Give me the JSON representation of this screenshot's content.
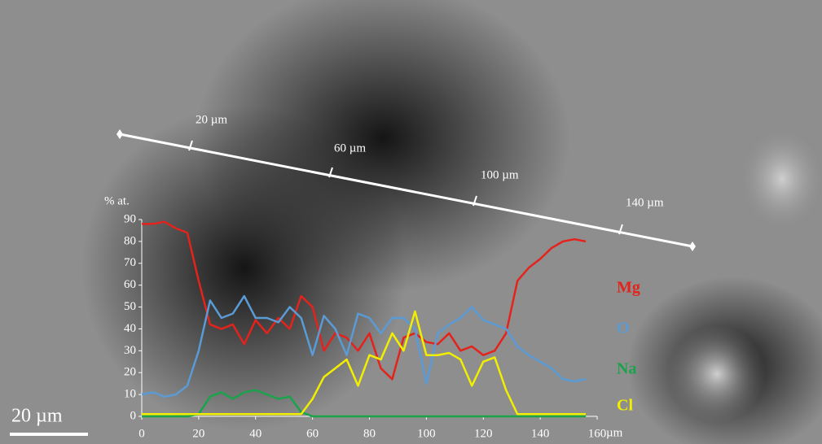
{
  "chart_data": {
    "type": "line",
    "ylabel": "% at.",
    "xlabel": "µm",
    "x": [
      0,
      4,
      8,
      12,
      16,
      20,
      24,
      28,
      32,
      36,
      40,
      44,
      48,
      52,
      56,
      60,
      64,
      68,
      72,
      76,
      80,
      84,
      88,
      92,
      96,
      100,
      104,
      108,
      112,
      116,
      120,
      124,
      128,
      132,
      136,
      140,
      144,
      148,
      152,
      156
    ],
    "series": [
      {
        "name": "Mg",
        "color": "#e3231c",
        "values": [
          88,
          88,
          89,
          86,
          84,
          62,
          42,
          40,
          42,
          33,
          44,
          38,
          45,
          40,
          55,
          50,
          30,
          38,
          36,
          30,
          38,
          22,
          17,
          36,
          38,
          34,
          33,
          38,
          30,
          32,
          28,
          30,
          38,
          62,
          68,
          72,
          77,
          80,
          81,
          80
        ]
      },
      {
        "name": "O",
        "color": "#5b9bd5",
        "values": [
          10,
          11,
          9,
          10,
          14,
          30,
          53,
          45,
          47,
          55,
          45,
          45,
          43,
          50,
          45,
          28,
          46,
          40,
          28,
          47,
          45,
          38,
          45,
          45,
          40,
          15,
          38,
          42,
          45,
          50,
          44,
          42,
          40,
          32,
          28,
          25,
          22,
          17,
          16,
          17
        ]
      },
      {
        "name": "Na",
        "color": "#1aa34a",
        "values": [
          0,
          0,
          0,
          0,
          0,
          1,
          9,
          11,
          8,
          11,
          12,
          10,
          8,
          9,
          2,
          0,
          0,
          0,
          0,
          0,
          0,
          0,
          0,
          0,
          0,
          0,
          0,
          0,
          0,
          0,
          0,
          0,
          0,
          0,
          0,
          0,
          0,
          0,
          0,
          0
        ]
      },
      {
        "name": "Cl",
        "color": "#f2ee00",
        "values": [
          1,
          1,
          1,
          1,
          1,
          1,
          1,
          1,
          1,
          1,
          1,
          1,
          1,
          1,
          1,
          8,
          18,
          22,
          26,
          14,
          28,
          26,
          38,
          30,
          48,
          28,
          28,
          29,
          26,
          14,
          25,
          27,
          12,
          1,
          1,
          1,
          1,
          1,
          1,
          1
        ]
      }
    ],
    "xlim": [
      0,
      160
    ],
    "ylim": [
      0,
      90
    ],
    "xticks": [
      0,
      20,
      40,
      60,
      80,
      100,
      120,
      140,
      160
    ],
    "yticks": [
      0,
      10,
      20,
      30,
      40,
      50,
      60,
      70,
      80,
      90
    ],
    "scale_bar": "20 µm",
    "line_markers": [
      "20 µm",
      "60 µm",
      "100 µm",
      "140 µm"
    ]
  }
}
